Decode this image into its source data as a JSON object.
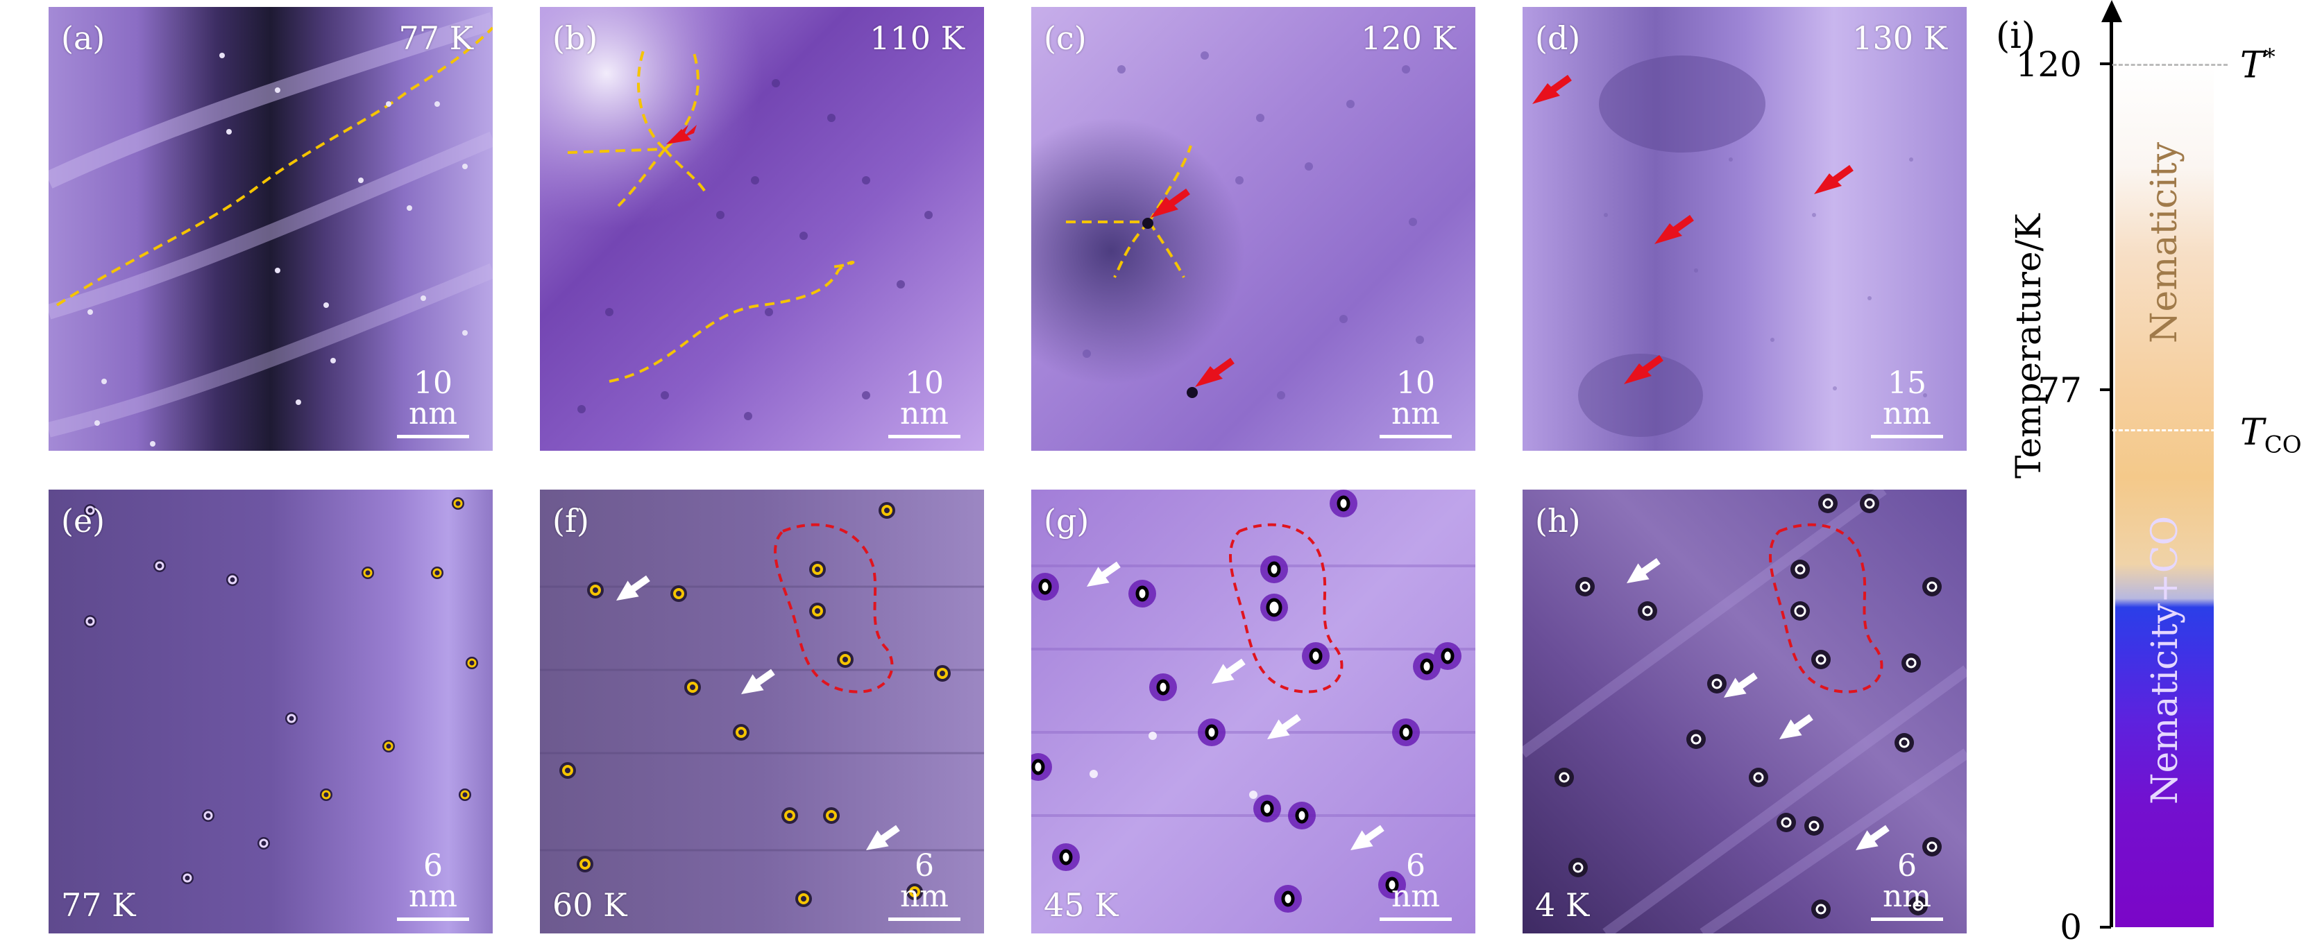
{
  "panels": [
    {
      "id": "a",
      "label": "(a)",
      "temp": "77 K",
      "scale": "10 nm"
    },
    {
      "id": "b",
      "label": "(b)",
      "temp": "110 K",
      "scale": "10 nm"
    },
    {
      "id": "c",
      "label": "(c)",
      "temp": "120 K",
      "scale": "10 nm"
    },
    {
      "id": "d",
      "label": "(d)",
      "temp": "130 K",
      "scale": "15 nm"
    },
    {
      "id": "e",
      "label": "(e)",
      "temp": "77 K",
      "scale": "6 nm"
    },
    {
      "id": "f",
      "label": "(f)",
      "temp": "60 K",
      "scale": "6 nm"
    },
    {
      "id": "g",
      "label": "(g)",
      "temp": "45 K",
      "scale": "6 nm"
    },
    {
      "id": "h",
      "label": "(h)",
      "temp": "4 K",
      "scale": "6 nm"
    }
  ],
  "phase_diagram": {
    "label": "(i)",
    "axis_title": "Temperature/K",
    "ticks": [
      "120",
      "77",
      "0"
    ],
    "t_star": "T",
    "t_star_sup": "*",
    "t_co": "T",
    "t_co_sub": "CO",
    "region_upper": "Nematicity",
    "region_lower": "Nematicity+CO"
  },
  "colors": {
    "arrow_red": "#e8101c",
    "arrow_white": "#ffffff",
    "dash_yellow": "#f5c400",
    "dash_red": "#e0141e",
    "phase_orange": "#f4c98a",
    "phase_purple": "#7b06c7",
    "phase_blue": "#2b3fe8"
  }
}
